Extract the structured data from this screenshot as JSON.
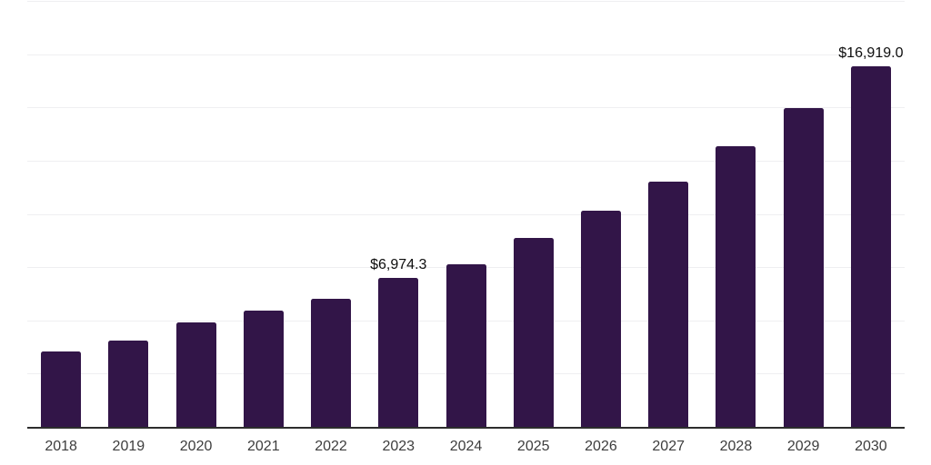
{
  "background": "#ffffff",
  "chart_data": {
    "type": "bar",
    "title": "",
    "xlabel": "",
    "ylabel": "",
    "categories": [
      "2018",
      "2019",
      "2020",
      "2021",
      "2022",
      "2023",
      "2024",
      "2025",
      "2026",
      "2027",
      "2028",
      "2029",
      "2030"
    ],
    "values": [
      3530,
      4040,
      4890,
      5470,
      6000,
      6974.3,
      7620,
      8860,
      10140,
      11510,
      13160,
      14960,
      16919.0
    ],
    "data_labels": {
      "2023": "$6,974.3",
      "2030": "$16,919.0"
    },
    "ylim": [
      0,
      20000
    ],
    "gridline_step": 2500,
    "grid": true,
    "legend_position": "none",
    "colors": {
      "bar": "#321548",
      "gridline": "#efeff1",
      "axis_line": "#2d2d2d",
      "tick_label": "#3d3d3d",
      "data_label": "#0d0d0d"
    }
  }
}
